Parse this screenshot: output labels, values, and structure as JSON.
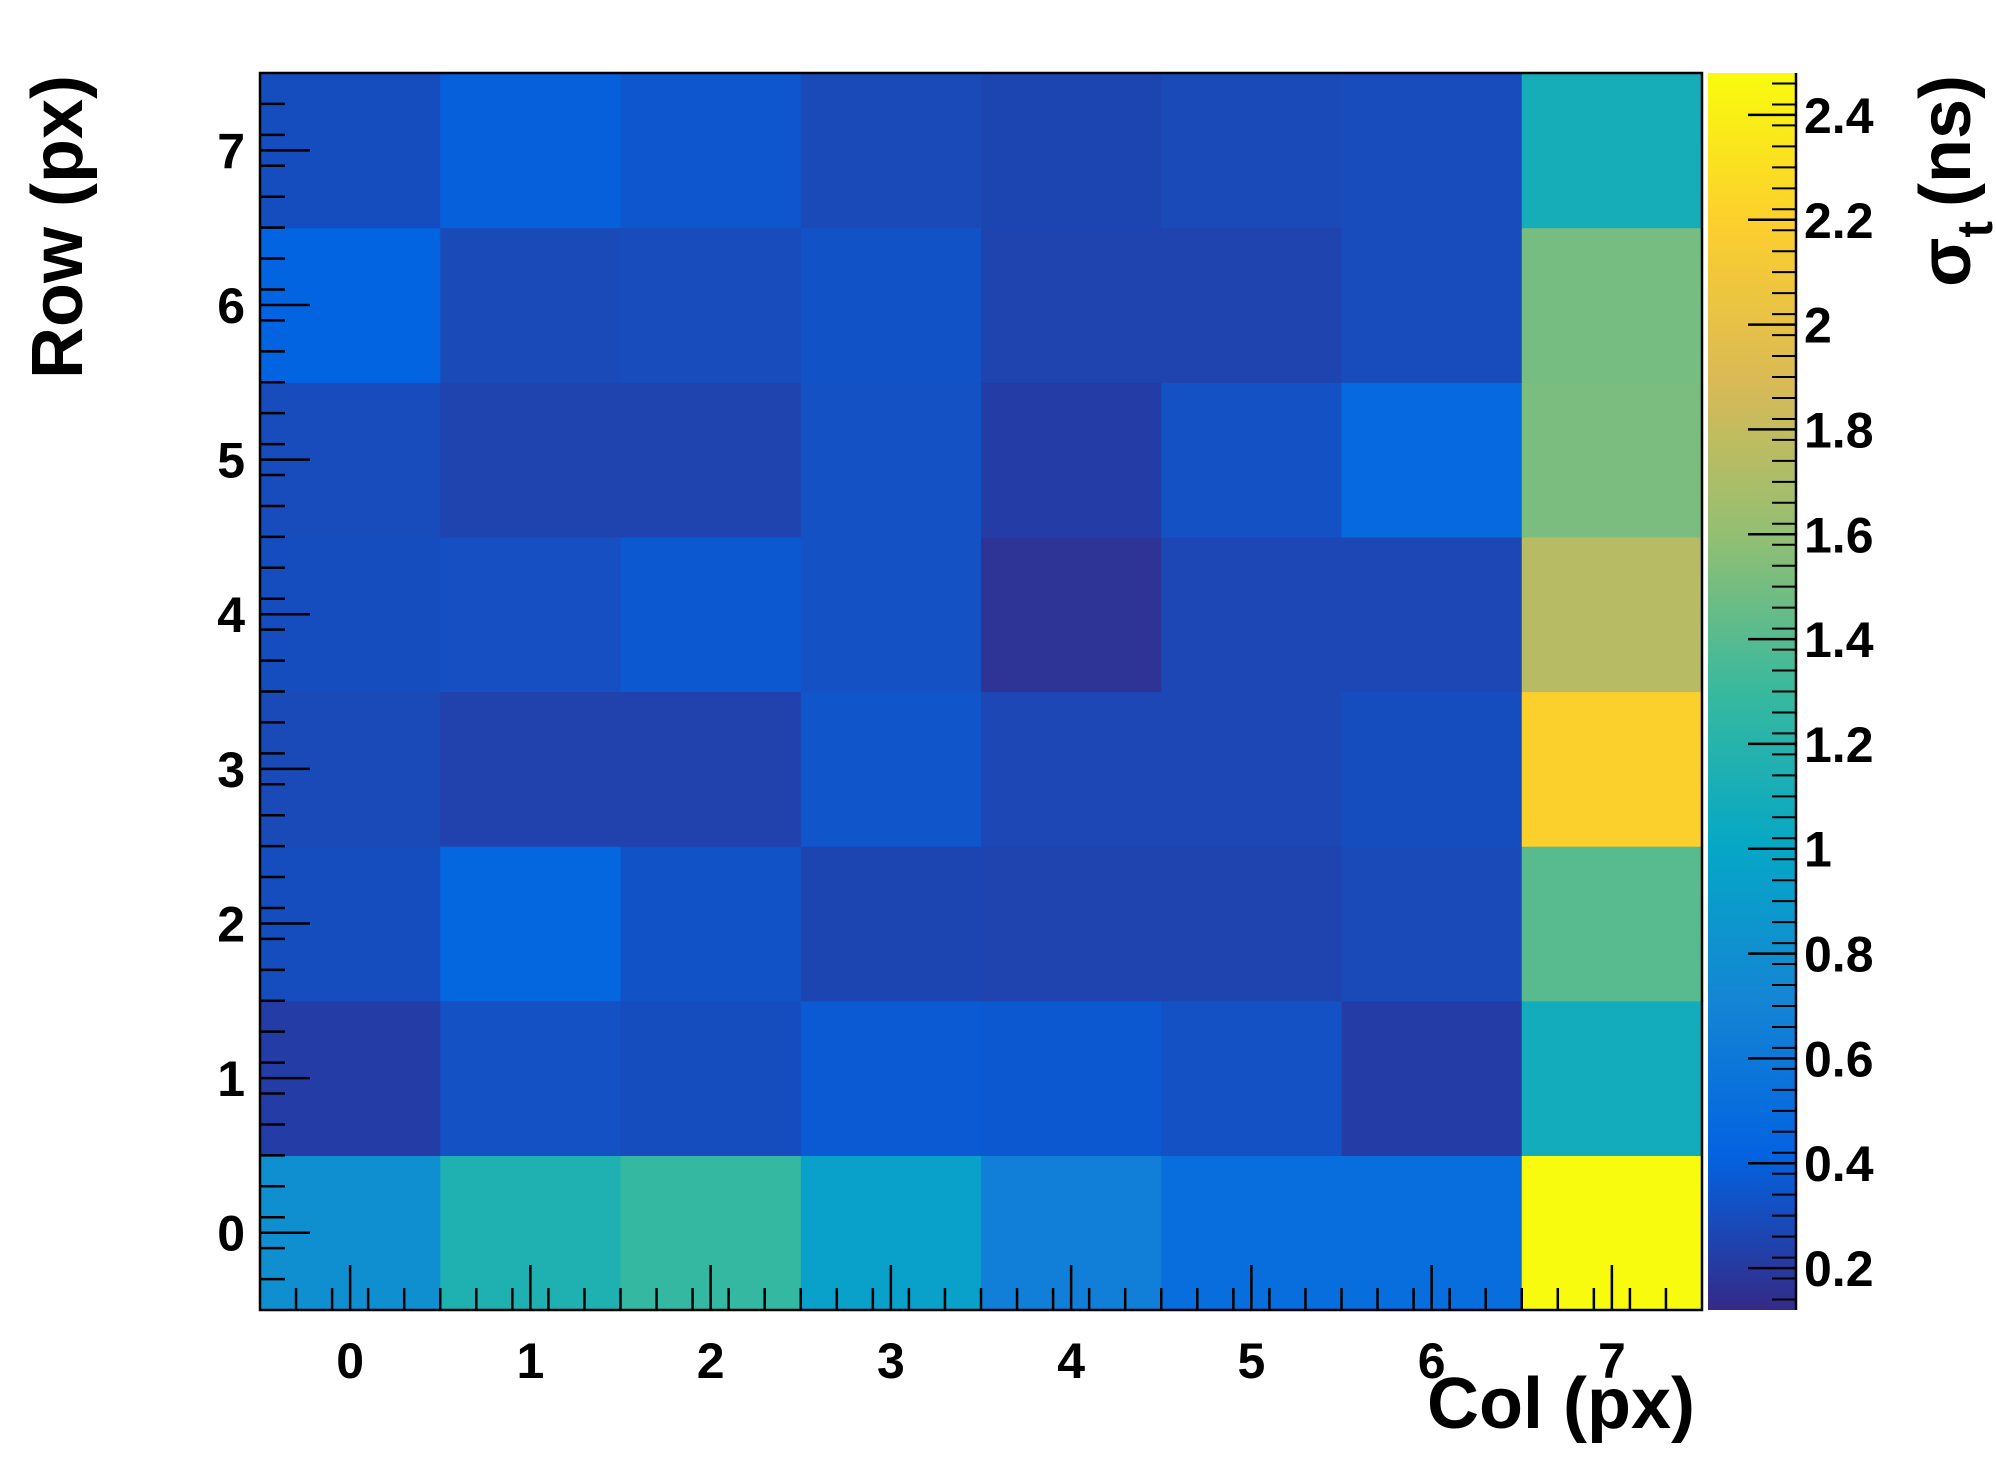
{
  "chart_data": {
    "type": "heatmap",
    "title": "",
    "xlabel": "Col (px)",
    "ylabel": "Row (px)",
    "zlabel": {
      "symbol": "σ",
      "subscript": "t",
      "unit": "(ns)"
    },
    "x_categories": [
      "0",
      "1",
      "2",
      "3",
      "4",
      "5",
      "6",
      "7"
    ],
    "y_categories": [
      "0",
      "1",
      "2",
      "3",
      "4",
      "5",
      "6",
      "7"
    ],
    "xlim": [
      -0.5,
      7.5
    ],
    "ylim": [
      -0.5,
      7.5
    ],
    "zlim": [
      0.12,
      2.48
    ],
    "z_ticks": [
      "0.2",
      "0.4",
      "0.6",
      "0.8",
      "1",
      "1.2",
      "1.4",
      "1.6",
      "1.8",
      "2",
      "2.2",
      "2.4"
    ],
    "z_tick_values": [
      0.2,
      0.4,
      0.6,
      0.8,
      1.0,
      1.2,
      1.4,
      1.6,
      1.8,
      2.0,
      2.2,
      2.4
    ],
    "colormap": "parula",
    "colormap_stops": [
      "#352a87",
      "#0363e1",
      "#1485d4",
      "#06a7c6",
      "#38b99e",
      "#92bf73",
      "#d9ba56",
      "#fcce2e",
      "#f9fb0e"
    ],
    "values_by_row": [
      [
        0.8,
        1.15,
        1.28,
        0.95,
        0.65,
        0.5,
        0.5,
        2.48
      ],
      [
        0.22,
        0.32,
        0.3,
        0.37,
        0.36,
        0.32,
        0.22,
        1.08
      ],
      [
        0.3,
        0.45,
        0.33,
        0.26,
        0.25,
        0.25,
        0.28,
        1.4
      ],
      [
        0.28,
        0.24,
        0.24,
        0.34,
        0.27,
        0.27,
        0.3,
        2.2
      ],
      [
        0.3,
        0.31,
        0.36,
        0.32,
        0.17,
        0.27,
        0.27,
        1.75
      ],
      [
        0.29,
        0.25,
        0.25,
        0.32,
        0.22,
        0.32,
        0.47,
        1.52
      ],
      [
        0.42,
        0.28,
        0.29,
        0.33,
        0.25,
        0.25,
        0.29,
        1.5
      ],
      [
        0.3,
        0.4,
        0.35,
        0.28,
        0.26,
        0.28,
        0.29,
        1.1
      ]
    ]
  }
}
